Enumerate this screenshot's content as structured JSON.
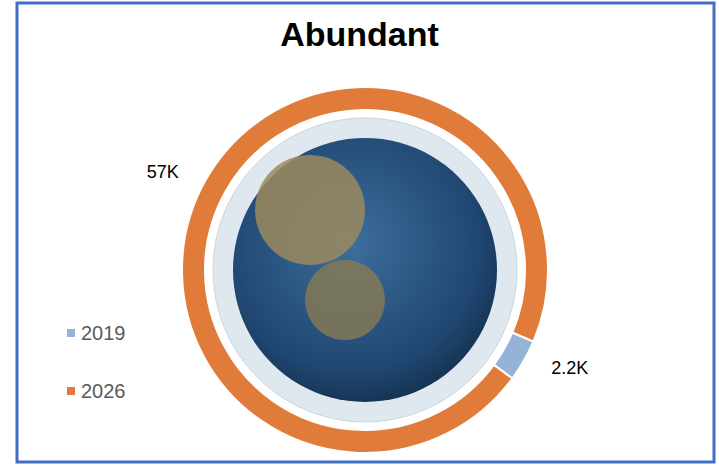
{
  "chart_data": {
    "type": "pie",
    "title": "Abundant",
    "categories": [
      "2019",
      "2026"
    ],
    "values": [
      2200,
      57000
    ],
    "value_labels": [
      "2.2K",
      "57K"
    ],
    "colors": [
      "#95b3d7",
      "#e07b39"
    ],
    "legend": "left",
    "data_labels": true
  }
}
